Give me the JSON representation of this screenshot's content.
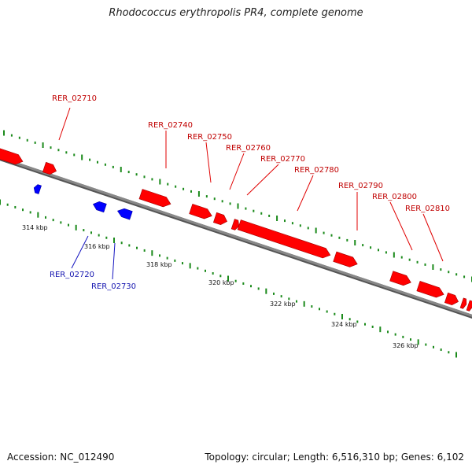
{
  "title": "Rhodococcus erythropolis PR4, complete genome",
  "footer": {
    "accession": "Accession: NC_012490",
    "summary": "Topology: circular; Length: 6,516,310 bp; Genes: 6,102"
  },
  "colors": {
    "forward_gene": "#ff0000",
    "reverse_gene": "#0000ff",
    "forward_label": "#c00000",
    "reverse_label": "#1515b0",
    "backbone": "#888888",
    "dot_track": "#1b8a1b"
  },
  "ticks": [
    {
      "label": "314 kbp"
    },
    {
      "label": "316 kbp"
    },
    {
      "label": "318 kbp"
    },
    {
      "label": "320 kbp"
    },
    {
      "label": "322 kbp"
    },
    {
      "label": "324 kbp"
    },
    {
      "label": "326 kbp"
    }
  ],
  "forward_labels": [
    "RER_02710",
    "RER_02740",
    "RER_02750",
    "RER_02760",
    "RER_02770",
    "RER_02780",
    "RER_02790",
    "RER_02800",
    "RER_02810"
  ],
  "reverse_labels": [
    "RER_02720",
    "RER_02730"
  ]
}
